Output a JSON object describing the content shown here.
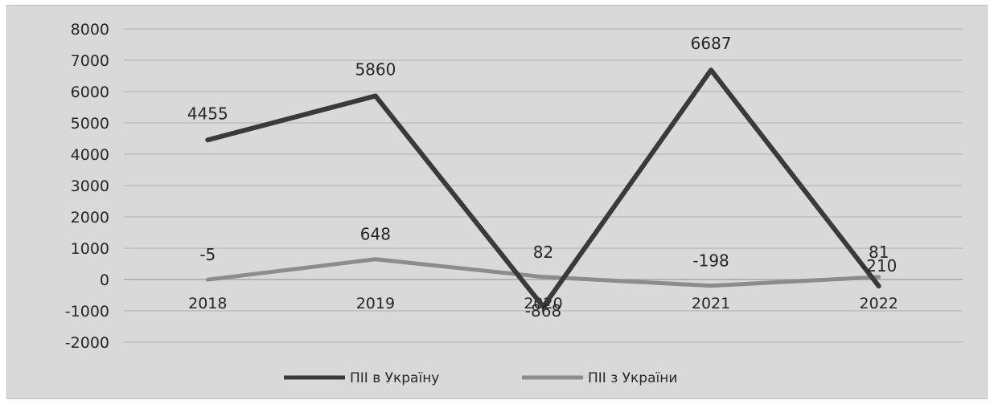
{
  "chart_data": {
    "type": "line",
    "title": "",
    "xlabel": "",
    "ylabel": "",
    "categories": [
      "2018",
      "2019",
      "2020",
      "2021",
      "2022"
    ],
    "ylim": [
      -2000,
      8000
    ],
    "yticks": [
      8000,
      7000,
      6000,
      5000,
      4000,
      3000,
      2000,
      1000,
      0,
      -1000,
      -2000
    ],
    "grid": true,
    "legend_position": "bottom",
    "series": [
      {
        "name": "ПІІ в Україну",
        "values": [
          4455,
          5860,
          -868,
          6687,
          -210
        ],
        "labels": [
          "4455",
          "5860",
          "-868",
          "6687",
          "-210"
        ],
        "color": "#3a3a3a"
      },
      {
        "name": "ПІІ з України",
        "values": [
          -5,
          648,
          82,
          -198,
          81
        ],
        "labels": [
          "-5",
          "648",
          "82",
          "-198",
          "81"
        ],
        "color": "#8c8c8c"
      }
    ]
  }
}
